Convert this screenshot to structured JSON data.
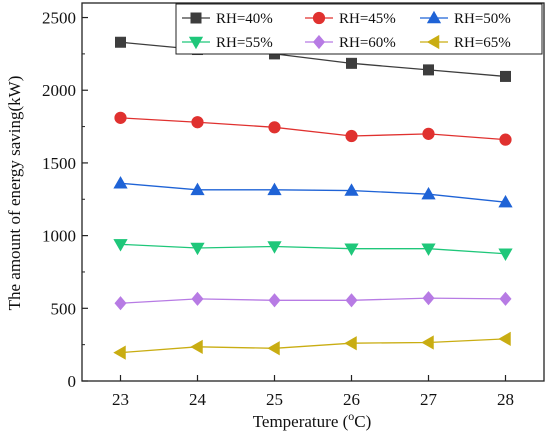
{
  "chart_data": {
    "type": "line",
    "xlabel": "Temperature (",
    "xlabel_unit_sup": "o",
    "xlabel_unit": "C)",
    "ylabel": "The amount of energy saving(kW)",
    "x": [
      23,
      24,
      25,
      26,
      27,
      28
    ],
    "xlim": [
      22.5,
      28.5
    ],
    "ylim": [
      0,
      2600
    ],
    "y_ticks": [
      0,
      500,
      1000,
      1500,
      2000,
      2500
    ],
    "x_ticks": [
      23,
      24,
      25,
      26,
      27,
      28
    ],
    "legend_position": "top-right",
    "grid": false,
    "series": [
      {
        "name": "RH=40%",
        "marker": "square",
        "color": "#3d3d3d",
        "values": [
          2330,
          2280,
          2250,
          2185,
          2140,
          2095
        ]
      },
      {
        "name": "RH=45%",
        "marker": "circle",
        "color": "#e0312f",
        "values": [
          1810,
          1780,
          1745,
          1685,
          1700,
          1660
        ]
      },
      {
        "name": "RH=50%",
        "marker": "triangle-up",
        "color": "#1f63d6",
        "values": [
          1360,
          1315,
          1315,
          1310,
          1285,
          1230
        ]
      },
      {
        "name": "RH=55%",
        "marker": "triangle-down",
        "color": "#1fc77a",
        "values": [
          940,
          915,
          925,
          910,
          910,
          875
        ]
      },
      {
        "name": "RH=60%",
        "marker": "diamond",
        "color": "#b77be4",
        "values": [
          535,
          565,
          555,
          555,
          570,
          565
        ]
      },
      {
        "name": "RH=65%",
        "marker": "triangle-left",
        "color": "#c9ad12",
        "values": [
          195,
          235,
          225,
          260,
          265,
          290
        ]
      }
    ]
  }
}
